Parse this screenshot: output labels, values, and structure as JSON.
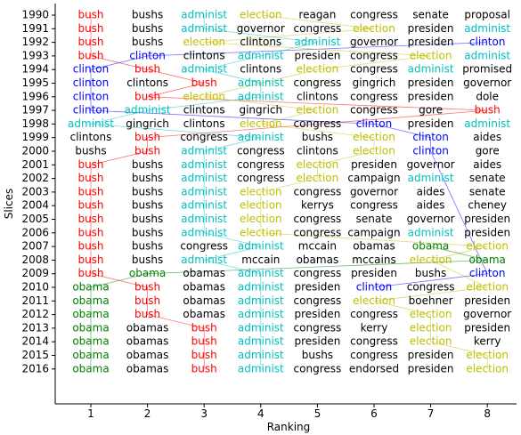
{
  "chart_data": {
    "type": "table",
    "xlabel": "Ranking",
    "ylabel": "Slices",
    "x_ticks": [
      "1",
      "2",
      "3",
      "4",
      "5",
      "6",
      "7",
      "8"
    ],
    "slices": [
      "1990",
      "1991",
      "1992",
      "1993",
      "1994",
      "1995",
      "1996",
      "1997",
      "1998",
      "1999",
      "2000",
      "2001",
      "2002",
      "2003",
      "2004",
      "2005",
      "2006",
      "2007",
      "2008",
      "2009",
      "2010",
      "2011",
      "2012",
      "2013",
      "2014",
      "2015",
      "2016"
    ],
    "rows": [
      [
        "bush",
        "bushs",
        "administ",
        "election",
        "reagan",
        "congress",
        "senate",
        "proposal"
      ],
      [
        "bush",
        "bushs",
        "administ",
        "governor",
        "congress",
        "election",
        "presiden",
        "administ"
      ],
      [
        "bush",
        "bushs",
        "election",
        "clintons",
        "administ",
        "governor",
        "presiden",
        "clinton"
      ],
      [
        "bush",
        "clinton",
        "clintons",
        "administ",
        "presiden",
        "congress",
        "election",
        "administ"
      ],
      [
        "clinton",
        "bush",
        "administ",
        "clintons",
        "election",
        "congress",
        "administ",
        "promised"
      ],
      [
        "clinton",
        "clintons",
        "bush",
        "administ",
        "congress",
        "gingrich",
        "presiden",
        "governor"
      ],
      [
        "clinton",
        "bush",
        "election",
        "administ",
        "clintons",
        "congress",
        "presiden",
        "dole"
      ],
      [
        "clinton",
        "administ",
        "clintons",
        "gingrich",
        "election",
        "congress",
        "gore",
        "bush"
      ],
      [
        "administ",
        "gingrich",
        "clintons",
        "election",
        "congress",
        "clinton",
        "presiden",
        "administ"
      ],
      [
        "clintons",
        "bush",
        "congress",
        "administ",
        "bushs",
        "election",
        "clinton",
        "aides"
      ],
      [
        "bushs",
        "bush",
        "administ",
        "congress",
        "clintons",
        "election",
        "clinton",
        "gore"
      ],
      [
        "bush",
        "bushs",
        "administ",
        "congress",
        "election",
        "presiden",
        "governor",
        "aides"
      ],
      [
        "bush",
        "bushs",
        "administ",
        "congress",
        "election",
        "campaign",
        "administ",
        "senate"
      ],
      [
        "bush",
        "bushs",
        "administ",
        "election",
        "congress",
        "governor",
        "aides",
        "senate"
      ],
      [
        "bush",
        "bushs",
        "administ",
        "election",
        "kerrys",
        "congress",
        "aides",
        "cheney"
      ],
      [
        "bush",
        "bushs",
        "administ",
        "election",
        "congress",
        "senate",
        "governor",
        "presiden"
      ],
      [
        "bush",
        "bushs",
        "administ",
        "election",
        "congress",
        "campaign",
        "administ",
        "presiden"
      ],
      [
        "bush",
        "bushs",
        "congress",
        "administ",
        "mccain",
        "obamas",
        "obama",
        "election"
      ],
      [
        "bush",
        "bushs",
        "administ",
        "mccain",
        "obamas",
        "mccains",
        "election",
        "obama"
      ],
      [
        "bush",
        "obama",
        "obamas",
        "administ",
        "congress",
        "presiden",
        "bushs",
        "clinton"
      ],
      [
        "obama",
        "bush",
        "obamas",
        "administ",
        "presiden",
        "clinton",
        "congress",
        "election"
      ],
      [
        "obama",
        "bush",
        "obamas",
        "administ",
        "congress",
        "election",
        "boehner",
        "presiden"
      ],
      [
        "obama",
        "bush",
        "obamas",
        "administ",
        "presiden",
        "congress",
        "election",
        "governor"
      ],
      [
        "obama",
        "obamas",
        "bush",
        "administ",
        "congress",
        "kerry",
        "election",
        "presiden"
      ],
      [
        "obama",
        "obamas",
        "bush",
        "administ",
        "presiden",
        "congress",
        "election",
        "kerry"
      ],
      [
        "obama",
        "obamas",
        "bush",
        "administ",
        "bushs",
        "congress",
        "presiden",
        "election"
      ],
      [
        "obama",
        "obamas",
        "bush",
        "administ",
        "congress",
        "endorsed",
        "presiden",
        "election"
      ]
    ],
    "highlighted_terms": [
      "bush",
      "clinton",
      "administ",
      "election",
      "obama"
    ],
    "colors": {
      "bush": "#ff0000",
      "clinton": "#0000ff",
      "administ": "#00bfbf",
      "election": "#bfbf00",
      "obama": "#008000",
      "default": "#000000"
    },
    "grid": false
  }
}
